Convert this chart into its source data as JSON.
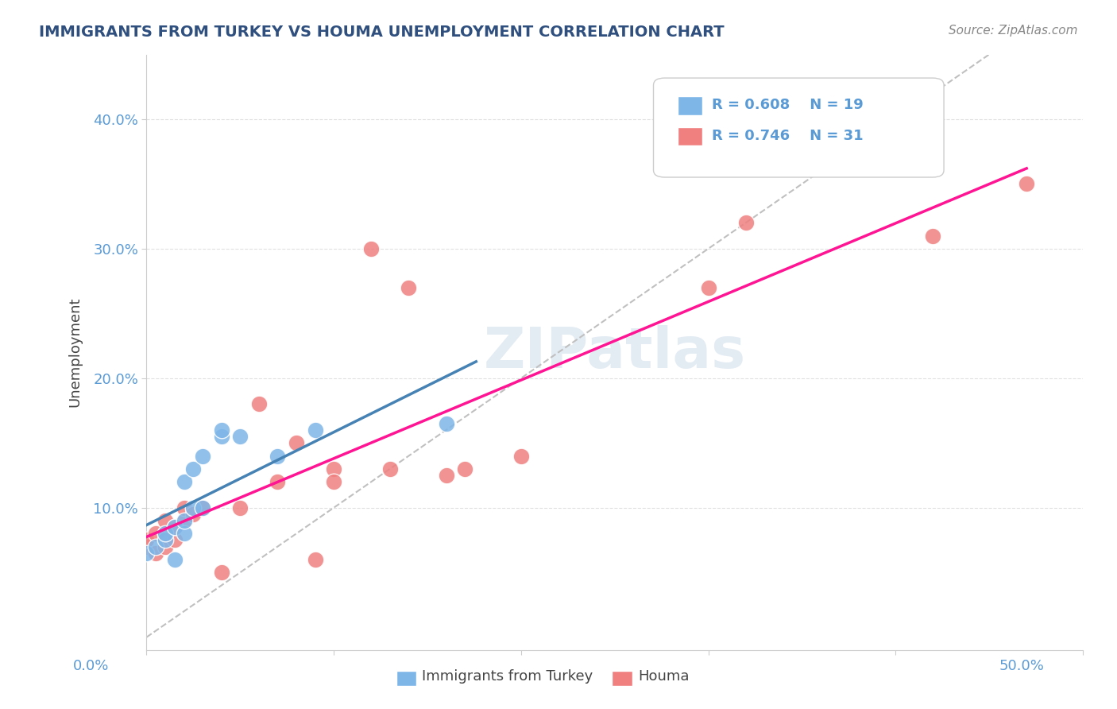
{
  "title": "IMMIGRANTS FROM TURKEY VS HOUMA UNEMPLOYMENT CORRELATION CHART",
  "source": "Source: ZipAtlas.com",
  "ylabel": "Unemployment",
  "watermark": "ZIPatlas",
  "legend_r1": "R = 0.608",
  "legend_n1": "N = 19",
  "legend_r2": "R = 0.746",
  "legend_n2": "N = 31",
  "blue_color": "#7EB6E8",
  "pink_color": "#F08080",
  "blue_line_color": "#4682B4",
  "pink_line_color": "#FF1493",
  "dashed_line_color": "#C0C0C0",
  "blue_scatter_x": [
    0.0,
    0.005,
    0.01,
    0.01,
    0.015,
    0.015,
    0.02,
    0.02,
    0.02,
    0.025,
    0.025,
    0.03,
    0.03,
    0.04,
    0.04,
    0.05,
    0.07,
    0.09,
    0.16
  ],
  "blue_scatter_y": [
    0.065,
    0.07,
    0.075,
    0.08,
    0.06,
    0.085,
    0.08,
    0.09,
    0.12,
    0.1,
    0.13,
    0.1,
    0.14,
    0.155,
    0.16,
    0.155,
    0.14,
    0.16,
    0.165
  ],
  "pink_scatter_x": [
    0.0,
    0.0,
    0.005,
    0.005,
    0.01,
    0.01,
    0.01,
    0.015,
    0.015,
    0.02,
    0.02,
    0.025,
    0.03,
    0.04,
    0.05,
    0.06,
    0.07,
    0.08,
    0.09,
    0.1,
    0.1,
    0.12,
    0.13,
    0.14,
    0.16,
    0.17,
    0.2,
    0.3,
    0.32,
    0.42,
    0.47
  ],
  "pink_scatter_y": [
    0.07,
    0.075,
    0.065,
    0.08,
    0.07,
    0.08,
    0.09,
    0.075,
    0.085,
    0.09,
    0.1,
    0.095,
    0.1,
    0.05,
    0.1,
    0.18,
    0.12,
    0.15,
    0.06,
    0.13,
    0.12,
    0.3,
    0.13,
    0.27,
    0.125,
    0.13,
    0.14,
    0.27,
    0.32,
    0.31,
    0.35
  ],
  "background_color": "#FFFFFF",
  "grid_color": "#E0E0E0",
  "xlim": [
    0.0,
    0.5
  ],
  "ylim": [
    -0.01,
    0.45
  ]
}
